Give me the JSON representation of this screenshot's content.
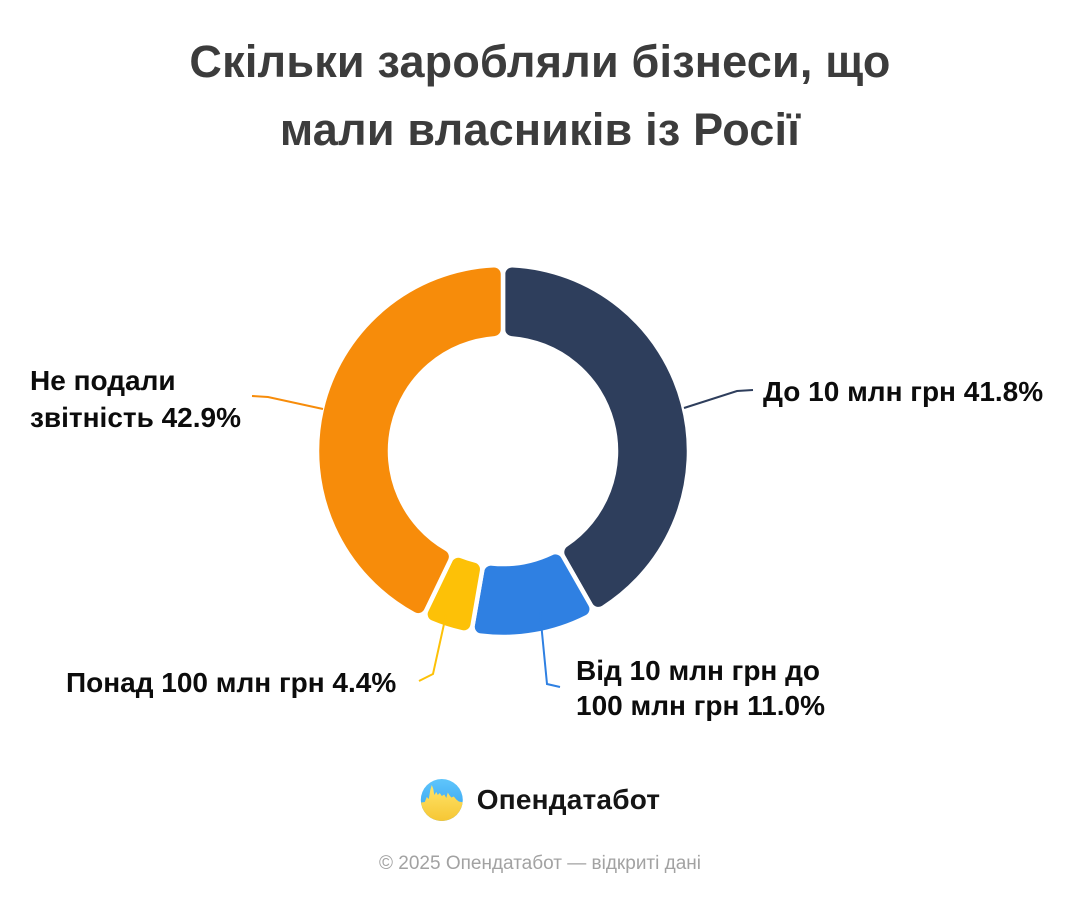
{
  "title": {
    "line1": "Скільки заробляли бізнеси, що",
    "line2": "мали власників із Росії",
    "full": "Скільки заробляли бізнеси, що мали власників із Росії"
  },
  "chart_data": {
    "type": "pie",
    "subtype": "donut",
    "title": "Скільки заробляли бізнеси, що мали власників із Росії",
    "unit": "%",
    "legend": "none",
    "labels_style": "callout",
    "slices": [
      {
        "name": "До 10 млн грн",
        "value": 41.8,
        "color": "#2E3E5C",
        "callout_lines": [
          "До 10 млн грн 41.8%"
        ]
      },
      {
        "name": "Від 10 млн грн до 100 млн грн",
        "value": 11.0,
        "color": "#2F80E2",
        "callout_lines": [
          "Від 10 млн грн до",
          "100 млн грн 11.0%"
        ]
      },
      {
        "name": "Понад 100 млн грн",
        "value": 4.4,
        "color": "#FDC107",
        "callout_lines": [
          "Понад 100 млн грн 4.4%"
        ]
      },
      {
        "name": "Не подали звітність",
        "value": 42.9,
        "color": "#F78C0A",
        "callout_lines": [
          "Не подали",
          "звітність 42.9%"
        ]
      }
    ]
  },
  "footer": {
    "brand": "Опендатабот",
    "copyright": "© 2025 Опендатабот — відкриті дані"
  }
}
